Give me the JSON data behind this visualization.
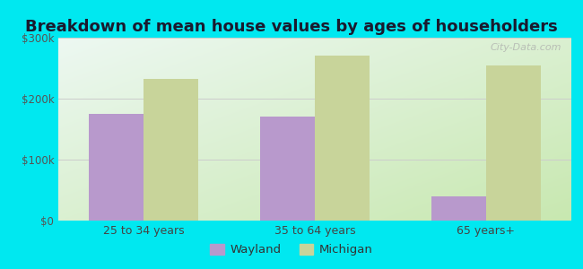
{
  "title": "Breakdown of mean house values by ages of householders",
  "categories": [
    "25 to 34 years",
    "35 to 64 years",
    "65 years+"
  ],
  "wayland_values": [
    175000,
    170000,
    40000
  ],
  "michigan_values": [
    232000,
    270000,
    255000
  ],
  "wayland_color": "#b899cc",
  "michigan_color": "#c8d49a",
  "ylim": [
    0,
    300000
  ],
  "yticks": [
    0,
    100000,
    200000,
    300000
  ],
  "ytick_labels": [
    "$0",
    "$100k",
    "$200k",
    "$300k"
  ],
  "bg_outer": "#00e8f0",
  "bg_plot_top_left": "#e8f5f0",
  "bg_plot_bottom_right": "#d4edc0",
  "legend_wayland": "Wayland",
  "legend_michigan": "Michigan",
  "bar_width": 0.32,
  "title_fontsize": 13,
  "watermark": "City-Data.com"
}
